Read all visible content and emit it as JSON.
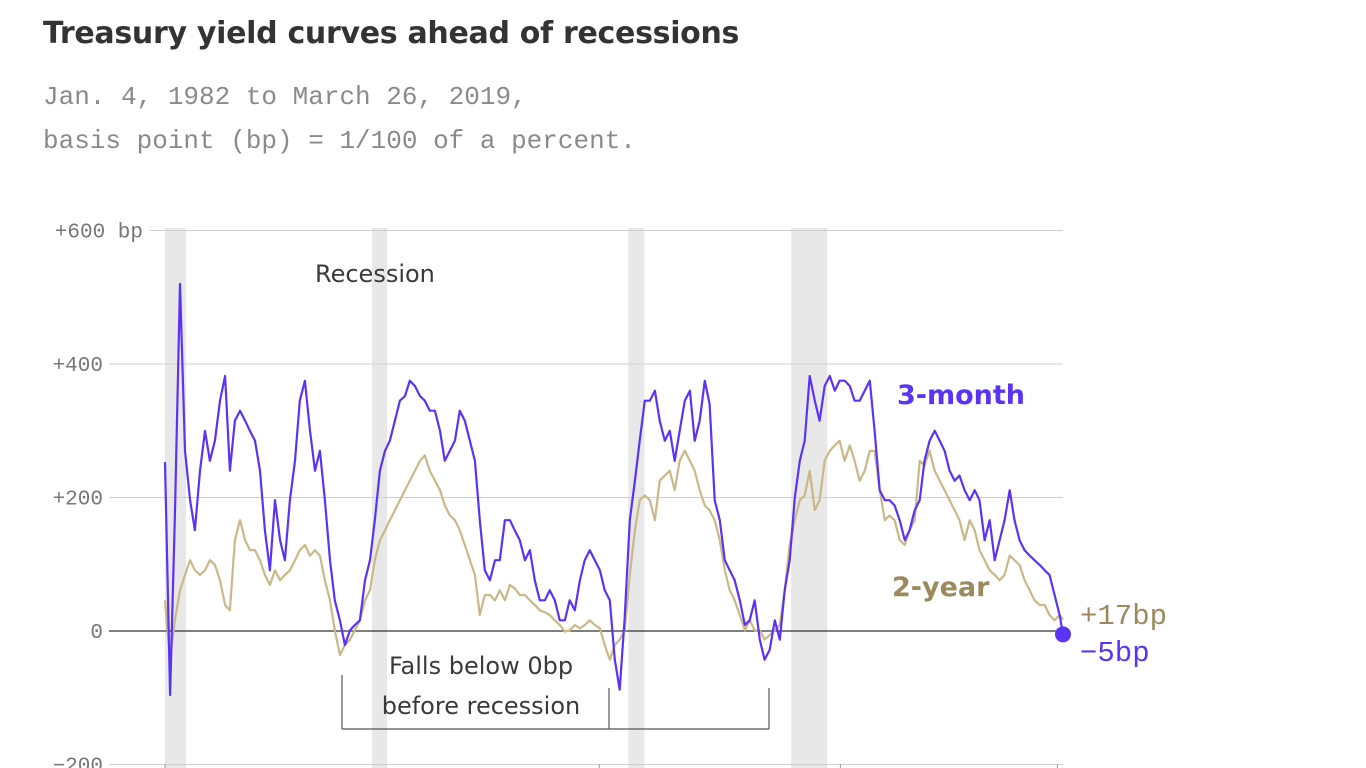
{
  "header": {
    "title": "Treasury yield curves ahead of recessions",
    "subtitle_line1": "Jan. 4, 1982 to March 26, 2019,",
    "subtitle_line2": "basis point (bp) = 1/100 of a percent."
  },
  "chart_data": {
    "type": "line",
    "title": "Treasury yield curves ahead of recessions",
    "xlim": [
      1982.0,
      2019.23
    ],
    "ylim": [
      -200,
      600
    ],
    "y_ticks": [
      600,
      400,
      200,
      0,
      -200
    ],
    "y_tick_labels": [
      "+600 bp",
      "+400",
      "+200",
      "0",
      "−200"
    ],
    "x_ticks": [
      1982,
      2000,
      2010,
      2019
    ],
    "grid": "horizontal",
    "colors": {
      "three_month": "#5b33f5",
      "two_year": "#c9b888",
      "two_year_label": "#9c8a5e",
      "recession": "#e8e8e8"
    },
    "recessions": [
      [
        1982.0,
        1982.87
      ],
      [
        1990.58,
        1991.21
      ],
      [
        2001.21,
        2001.88
      ],
      [
        2007.96,
        2009.46
      ]
    ],
    "annotations": {
      "recession": "Recession",
      "falls_line1": "Falls below 0bp",
      "falls_line2": "before recession"
    },
    "x": [
      1982.0,
      1982.21,
      1982.41,
      1982.62,
      1982.83,
      1983.04,
      1983.24,
      1983.45,
      1983.66,
      1983.86,
      1984.07,
      1984.28,
      1984.49,
      1984.69,
      1984.9,
      1985.11,
      1985.32,
      1985.52,
      1985.73,
      1985.94,
      1986.14,
      1986.35,
      1986.56,
      1986.77,
      1986.97,
      1987.18,
      1987.39,
      1987.59,
      1987.8,
      1988.01,
      1988.22,
      1988.42,
      1988.63,
      1988.84,
      1989.04,
      1989.25,
      1989.46,
      1989.67,
      1989.87,
      1990.08,
      1990.29,
      1990.5,
      1990.7,
      1990.91,
      1991.12,
      1991.32,
      1991.53,
      1991.74,
      1991.95,
      1992.15,
      1992.36,
      1992.57,
      1992.77,
      1992.98,
      1993.19,
      1993.4,
      1993.6,
      1993.81,
      1994.02,
      1994.22,
      1994.43,
      1994.64,
      1994.85,
      1995.05,
      1995.26,
      1995.47,
      1995.68,
      1995.88,
      1996.09,
      1996.3,
      1996.5,
      1996.71,
      1996.92,
      1997.13,
      1997.33,
      1997.54,
      1997.75,
      1997.95,
      1998.16,
      1998.37,
      1998.58,
      1998.78,
      1998.99,
      1999.2,
      1999.4,
      1999.61,
      1999.82,
      2000.03,
      2000.23,
      2000.44,
      2000.65,
      2000.85,
      2001.06,
      2001.27,
      2001.48,
      2001.68,
      2001.89,
      2002.1,
      2002.31,
      2002.51,
      2002.72,
      2002.93,
      2003.13,
      2003.34,
      2003.55,
      2003.76,
      2003.96,
      2004.17,
      2004.38,
      2004.58,
      2004.79,
      2005.0,
      2005.21,
      2005.41,
      2005.62,
      2005.83,
      2006.04,
      2006.24,
      2006.45,
      2006.66,
      2006.86,
      2007.07,
      2007.28,
      2007.49,
      2007.69,
      2007.9,
      2008.11,
      2008.32,
      2008.52,
      2008.73,
      2008.94,
      2009.14,
      2009.35,
      2009.56,
      2009.77,
      2009.97,
      2010.18,
      2010.39,
      2010.59,
      2010.8,
      2011.01,
      2011.22,
      2011.42,
      2011.63,
      2011.84,
      2012.04,
      2012.25,
      2012.46,
      2012.67,
      2012.87,
      2013.08,
      2013.29,
      2013.49,
      2013.7,
      2013.91,
      2014.12,
      2014.32,
      2014.53,
      2014.74,
      2014.94,
      2015.15,
      2015.36,
      2015.57,
      2015.77,
      2015.98,
      2016.19,
      2016.4,
      2016.6,
      2016.81,
      2017.02,
      2017.22,
      2017.43,
      2017.64,
      2017.85,
      2018.05,
      2018.26,
      2018.47,
      2018.67,
      2018.88,
      2019.09,
      2019.23
    ],
    "series": [
      {
        "name": "3-month",
        "end_label": "−5bp",
        "values": [
          253,
          -96,
          173,
          520,
          270,
          196,
          151,
          240,
          300,
          255,
          285,
          345,
          382,
          240,
          315,
          330,
          315,
          300,
          285,
          240,
          151,
          91,
          196,
          136,
          106,
          196,
          255,
          345,
          375,
          300,
          240,
          270,
          196,
          106,
          46,
          16,
          -21,
          1,
          9,
          16,
          76,
          106,
          166,
          240,
          270,
          285,
          315,
          345,
          352,
          375,
          367,
          352,
          345,
          330,
          330,
          300,
          255,
          270,
          285,
          330,
          315,
          285,
          255,
          166,
          91,
          76,
          106,
          106,
          166,
          166,
          151,
          136,
          106,
          121,
          76,
          46,
          46,
          61,
          46,
          16,
          16,
          46,
          31,
          76,
          106,
          121,
          106,
          91,
          61,
          46,
          -43,
          -88,
          20,
          166,
          225,
          285,
          345,
          345,
          360,
          315,
          285,
          300,
          255,
          300,
          345,
          360,
          285,
          315,
          375,
          340,
          196,
          166,
          106,
          91,
          76,
          46,
          9,
          16,
          46,
          -13,
          -43,
          -28,
          16,
          -13,
          61,
          106,
          200,
          255,
          285,
          382,
          345,
          315,
          367,
          382,
          360,
          375,
          375,
          367,
          345,
          345,
          360,
          375,
          300,
          211,
          196,
          196,
          188,
          166,
          136,
          151,
          181,
          196,
          255,
          285,
          300,
          285,
          270,
          240,
          225,
          233,
          211,
          196,
          211,
          196,
          136,
          166,
          106,
          136,
          166,
          211,
          166,
          136,
          121,
          113,
          106,
          99,
          91,
          84,
          54,
          24,
          -5
        ]
      },
      {
        "name": "2-year",
        "end_label": "+17bp",
        "values": [
          46,
          -43,
          16,
          61,
          84,
          106,
          91,
          84,
          91,
          106,
          99,
          76,
          39,
          31,
          136,
          166,
          136,
          121,
          121,
          106,
          84,
          69,
          91,
          76,
          84,
          91,
          106,
          121,
          129,
          113,
          121,
          113,
          76,
          46,
          1,
          -36,
          -21,
          -13,
          1,
          16,
          46,
          61,
          106,
          136,
          151,
          166,
          181,
          196,
          211,
          225,
          240,
          255,
          263,
          240,
          225,
          211,
          188,
          173,
          166,
          151,
          129,
          106,
          84,
          24,
          54,
          54,
          46,
          61,
          46,
          69,
          64,
          54,
          54,
          46,
          39,
          31,
          28,
          24,
          16,
          9,
          -1,
          1,
          9,
          4,
          9,
          16,
          9,
          4,
          -21,
          -43,
          -21,
          -13,
          1,
          84,
          151,
          196,
          203,
          196,
          166,
          225,
          233,
          240,
          211,
          255,
          270,
          255,
          240,
          211,
          188,
          181,
          166,
          136,
          91,
          61,
          46,
          24,
          1,
          16,
          1,
          1,
          -13,
          -6,
          1,
          9,
          61,
          129,
          166,
          196,
          203,
          240,
          181,
          196,
          255,
          270,
          278,
          285,
          255,
          278,
          255,
          225,
          240,
          270,
          270,
          211,
          166,
          173,
          166,
          136,
          129,
          151,
          166,
          255,
          248,
          270,
          240,
          225,
          211,
          196,
          181,
          166,
          136,
          166,
          151,
          121,
          106,
          91,
          84,
          76,
          84,
          113,
          106,
          99,
          76,
          61,
          46,
          39,
          39,
          24,
          16,
          24,
          17
        ]
      }
    ]
  }
}
